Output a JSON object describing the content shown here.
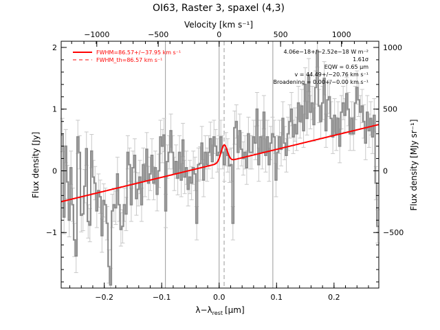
{
  "chart_data": {
    "type": "line",
    "title": "OI63, Raster 3, spaxel (4,3)",
    "xlabel_main": "λ−λ",
    "xlabel_sub": "rest",
    "xlabel_unit": "[μm]",
    "ylabel_left": "Flux density [Jy]",
    "ylabel_right": "Flux density [MJy sr⁻¹]",
    "top_axis_label": "Velocity [km s⁻¹]",
    "xlim": [
      -0.275,
      0.278
    ],
    "ylim": [
      -1.9,
      2.1
    ],
    "x_ticks": [
      {
        "v": -0.2,
        "label": "−0.2"
      },
      {
        "v": -0.1,
        "label": "−0.1"
      },
      {
        "v": 0.0,
        "label": "0.0"
      },
      {
        "v": 0.1,
        "label": "0.1"
      },
      {
        "v": 0.2,
        "label": "0.2"
      }
    ],
    "y_ticks": [
      {
        "v": -1,
        "label": "−1"
      },
      {
        "v": 0,
        "label": "0"
      },
      {
        "v": 1,
        "label": "1"
      },
      {
        "v": 2,
        "label": "2"
      }
    ],
    "top_ticks": [
      {
        "x": -0.213,
        "label": "−1000"
      },
      {
        "x": -0.106,
        "label": "−500"
      },
      {
        "x": 0.0,
        "label": "0"
      },
      {
        "x": 0.107,
        "label": "500"
      },
      {
        "x": 0.213,
        "label": "1000"
      }
    ],
    "right_ticks": [
      {
        "y": -1.0,
        "label": "−500"
      },
      {
        "y": 0.0,
        "label": "0"
      },
      {
        "y": 1.0,
        "label": "500"
      },
      {
        "y": 2.0,
        "label": "1000"
      }
    ],
    "vlines_solid": [
      -0.0935,
      0.0935
    ],
    "vline_center": 0.0,
    "vline_dashed": 0.0087,
    "legend": [
      {
        "label": "FWHM=86.57+/−37.95 km s⁻¹",
        "style": "solid"
      },
      {
        "label": "FWHM_th=86.57 km s⁻¹",
        "style": "dashed"
      }
    ],
    "annotations": [
      "4.06e−18+/−2.52e−18 W m⁻²",
      "1.61σ",
      "EQW = 0.65 μm",
      "v = 44.49+/−20.76 km s⁻¹",
      "Broadening = 0.00+/−0.00 km s⁻¹"
    ],
    "fit": {
      "baseline_start": [
        -0.275,
        -0.5
      ],
      "baseline_end": [
        0.278,
        0.75
      ],
      "center": 0.0087,
      "amp": 0.28,
      "sigma": 0.0055
    },
    "spectrum_error": 0.27,
    "spectrum": [
      [
        -0.273,
        0.58
      ],
      [
        -0.27,
        -0.75
      ],
      [
        -0.267,
        0.4
      ],
      [
        -0.264,
        -0.18
      ],
      [
        -0.261,
        -0.8
      ],
      [
        -0.258,
        0.05
      ],
      [
        -0.255,
        -0.55
      ],
      [
        -0.252,
        -1.12
      ],
      [
        -0.249,
        -1.38
      ],
      [
        -0.246,
        0.55
      ],
      [
        -0.243,
        0.3
      ],
      [
        -0.24,
        -0.72
      ],
      [
        -0.237,
        -0.7
      ],
      [
        -0.234,
        -0.25
      ],
      [
        -0.231,
        0.36
      ],
      [
        -0.228,
        -0.82
      ],
      [
        -0.225,
        -0.88
      ],
      [
        -0.222,
        0.32
      ],
      [
        -0.219,
        -0.1
      ],
      [
        -0.216,
        -0.2
      ],
      [
        -0.213,
        -0.65
      ],
      [
        -0.21,
        -0.32
      ],
      [
        -0.207,
        -0.42
      ],
      [
        -0.204,
        -1.05
      ],
      [
        -0.201,
        -0.48
      ],
      [
        -0.198,
        -0.55
      ],
      [
        -0.195,
        -0.85
      ],
      [
        -0.192,
        -1.55
      ],
      [
        -0.189,
        -1.85
      ],
      [
        -0.186,
        -0.65
      ],
      [
        -0.183,
        -0.55
      ],
      [
        -0.18,
        -0.6
      ],
      [
        -0.177,
        -0.05
      ],
      [
        -0.174,
        -0.55
      ],
      [
        -0.171,
        -0.95
      ],
      [
        -0.168,
        -0.9
      ],
      [
        -0.165,
        -0.55
      ],
      [
        -0.162,
        -0.7
      ],
      [
        -0.159,
        0.3
      ],
      [
        -0.156,
        0.1
      ],
      [
        -0.153,
        -0.55
      ],
      [
        -0.15,
        0.05
      ],
      [
        -0.147,
        0.25
      ],
      [
        -0.144,
        -0.45
      ],
      [
        -0.141,
        -0.3
      ],
      [
        -0.138,
        -0.1
      ],
      [
        -0.135,
        -0.55
      ],
      [
        -0.132,
        0.1
      ],
      [
        -0.129,
        -0.15
      ],
      [
        -0.126,
        0.35
      ],
      [
        -0.123,
        -0.2
      ],
      [
        -0.12,
        -0.05
      ],
      [
        -0.117,
        0.25
      ],
      [
        -0.114,
        -0.2
      ],
      [
        -0.111,
        0.05
      ],
      [
        -0.108,
        -0.38
      ],
      [
        -0.105,
        0.0
      ],
      [
        -0.102,
        0.55
      ],
      [
        -0.099,
        0.4
      ],
      [
        -0.096,
        0.58
      ],
      [
        -0.093,
        -0.65
      ],
      [
        -0.09,
        0.15
      ],
      [
        -0.087,
        0.3
      ],
      [
        -0.084,
        0.65
      ],
      [
        -0.081,
        0.3
      ],
      [
        -0.078,
        -0.05
      ],
      [
        -0.075,
        0.15
      ],
      [
        -0.072,
        -0.12
      ],
      [
        -0.069,
        0.3
      ],
      [
        -0.066,
        -0.15
      ],
      [
        -0.063,
        0.5
      ],
      [
        -0.06,
        -0.1
      ],
      [
        -0.057,
        0.05
      ],
      [
        -0.054,
        -0.3
      ],
      [
        -0.051,
        -0.1
      ],
      [
        -0.048,
        -0.2
      ],
      [
        -0.045,
        0.05
      ],
      [
        -0.042,
        -0.05
      ],
      [
        -0.039,
        -0.85
      ],
      [
        -0.036,
        0.1
      ],
      [
        -0.033,
        0.12
      ],
      [
        -0.03,
        0.45
      ],
      [
        -0.027,
        -0.15
      ],
      [
        -0.024,
        0.3
      ],
      [
        -0.021,
        0.1
      ],
      [
        -0.018,
        0.3
      ],
      [
        -0.015,
        0.52
      ],
      [
        -0.012,
        0.15
      ],
      [
        -0.009,
        0.55
      ],
      [
        -0.006,
        0.4
      ],
      [
        -0.003,
        0.25
      ],
      [
        0.0,
        0.3
      ],
      [
        0.003,
        0.55
      ],
      [
        0.006,
        0.3
      ],
      [
        0.009,
        0.1
      ],
      [
        0.012,
        0.35
      ],
      [
        0.015,
        0.25
      ],
      [
        0.018,
        0.08
      ],
      [
        0.021,
        0.1
      ],
      [
        0.024,
        -0.85
      ],
      [
        0.027,
        0.7
      ],
      [
        0.03,
        0.8
      ],
      [
        0.033,
        0.3
      ],
      [
        0.036,
        0.65
      ],
      [
        0.039,
        0.35
      ],
      [
        0.042,
        0.2
      ],
      [
        0.045,
        0.3
      ],
      [
        0.048,
        0.05
      ],
      [
        0.051,
        0.6
      ],
      [
        0.054,
        0.3
      ],
      [
        0.057,
        0.3
      ],
      [
        0.06,
        0.55
      ],
      [
        0.063,
        0.45
      ],
      [
        0.066,
        1.0
      ],
      [
        0.069,
        0.1
      ],
      [
        0.072,
        0.55
      ],
      [
        0.075,
        0.3
      ],
      [
        0.078,
        0.95
      ],
      [
        0.081,
        0.25
      ],
      [
        0.084,
        0.55
      ],
      [
        0.087,
        0.1
      ],
      [
        0.09,
        0.45
      ],
      [
        0.093,
        0.6
      ],
      [
        0.096,
        0.55
      ],
      [
        0.099,
        -0.15
      ],
      [
        0.102,
        0.3
      ],
      [
        0.105,
        0.55
      ],
      [
        0.108,
        0.35
      ],
      [
        0.111,
        0.85
      ],
      [
        0.114,
        0.45
      ],
      [
        0.117,
        0.25
      ],
      [
        0.12,
        0.6
      ],
      [
        0.123,
        0.8
      ],
      [
        0.126,
        1.0
      ],
      [
        0.129,
        0.55
      ],
      [
        0.132,
        0.75
      ],
      [
        0.135,
        0.6
      ],
      [
        0.138,
        1.1
      ],
      [
        0.141,
        0.8
      ],
      [
        0.144,
        1.05
      ],
      [
        0.147,
        0.65
      ],
      [
        0.15,
        1.4
      ],
      [
        0.153,
        0.85
      ],
      [
        0.156,
        1.55
      ],
      [
        0.159,
        0.95
      ],
      [
        0.162,
        1.1
      ],
      [
        0.165,
        0.75
      ],
      [
        0.168,
        1.35
      ],
      [
        0.171,
        1.95
      ],
      [
        0.174,
        1.05
      ],
      [
        0.177,
        0.8
      ],
      [
        0.18,
        1.1
      ],
      [
        0.183,
        1.5
      ],
      [
        0.186,
        0.65
      ],
      [
        0.189,
        1.15
      ],
      [
        0.192,
        1.2
      ],
      [
        0.195,
        0.85
      ],
      [
        0.198,
        0.55
      ],
      [
        0.201,
        0.9
      ],
      [
        0.204,
        0.6
      ],
      [
        0.207,
        0.85
      ],
      [
        0.21,
        0.4
      ],
      [
        0.213,
        0.95
      ],
      [
        0.216,
        1.1
      ],
      [
        0.219,
        0.9
      ],
      [
        0.222,
        1.25
      ],
      [
        0.225,
        1.0
      ],
      [
        0.228,
        0.6
      ],
      [
        0.231,
        0.85
      ],
      [
        0.234,
        0.6
      ],
      [
        0.237,
        1.1
      ],
      [
        0.24,
        1.35
      ],
      [
        0.243,
        1.15
      ],
      [
        0.246,
        0.95
      ],
      [
        0.249,
        1.05
      ],
      [
        0.252,
        0.8
      ],
      [
        0.255,
        0.45
      ],
      [
        0.258,
        0.95
      ],
      [
        0.261,
        0.65
      ],
      [
        0.264,
        0.85
      ],
      [
        0.267,
        0.55
      ],
      [
        0.27,
        0.9
      ],
      [
        0.273,
        -0.2
      ],
      [
        0.276,
        -0.9
      ]
    ]
  }
}
